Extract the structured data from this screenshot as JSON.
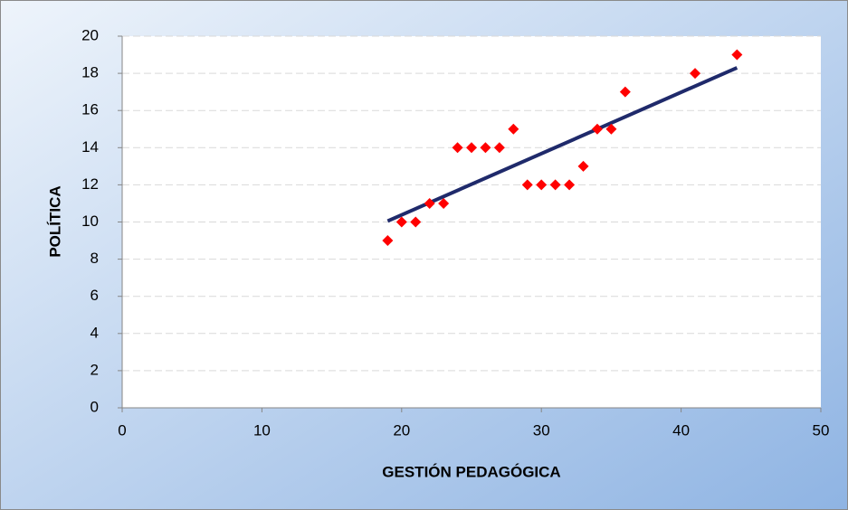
{
  "chart_data": {
    "type": "scatter",
    "x_label": "GESTIÓN PEDAGÓGICA",
    "y_label": "POLÍTICA",
    "x": [
      19,
      20,
      21,
      22,
      23,
      24,
      25,
      26,
      27,
      28,
      29,
      30,
      31,
      32,
      33,
      34,
      35,
      36,
      41,
      44
    ],
    "y": [
      9,
      10,
      10,
      11,
      11,
      14,
      14,
      14,
      14,
      15,
      12,
      12,
      12,
      12,
      13,
      15,
      15,
      17,
      18,
      19
    ],
    "color": "#ff0000",
    "trendline": {
      "x": [
        19,
        44
      ],
      "y": [
        10.05,
        18.3
      ],
      "color": "#1f2a6b"
    },
    "xlim": [
      0,
      50
    ],
    "xticks": [
      0,
      10,
      20,
      30,
      40,
      50
    ],
    "ylim": [
      0,
      20
    ],
    "yticks": [
      0,
      2,
      4,
      6,
      8,
      10,
      12,
      14,
      16,
      18,
      20
    ],
    "grid": true
  }
}
